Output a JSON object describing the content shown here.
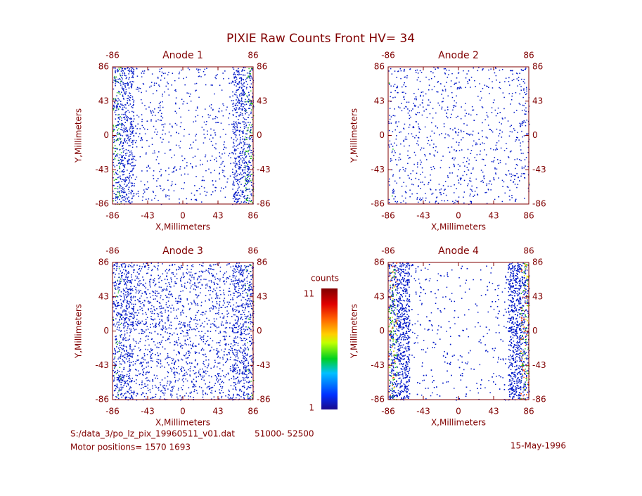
{
  "title": "PIXIE Raw Counts Front HV= 34",
  "chart_data": [
    {
      "type": "heatmap",
      "title": "Anode 1",
      "xlabel": "X,Millimeters",
      "ylabel": "Y,Millimeters",
      "xlim": [
        -86,
        86
      ],
      "ylim": [
        -86,
        86
      ],
      "xticks": [
        -86,
        -43,
        0,
        43,
        86
      ],
      "yticks": [
        -86,
        -43,
        0,
        43,
        86
      ],
      "x2ticks": [
        -86,
        86
      ]
    },
    {
      "type": "heatmap",
      "title": "Anode 2",
      "xlabel": "X,Millimeters",
      "ylabel": "Y,Millimeters",
      "xlim": [
        -86,
        86
      ],
      "ylim": [
        -86,
        86
      ],
      "xticks": [
        -86,
        -43,
        0,
        43,
        86
      ],
      "yticks": [
        -86,
        -43,
        0,
        43,
        86
      ],
      "x2ticks": [
        -86,
        86
      ]
    },
    {
      "type": "heatmap",
      "title": "Anode 3",
      "xlabel": "X,Millimeters",
      "ylabel": "Y,Millimeters",
      "xlim": [
        -86,
        86
      ],
      "ylim": [
        -86,
        86
      ],
      "xticks": [
        -86,
        -43,
        0,
        43,
        86
      ],
      "yticks": [
        -86,
        -43,
        0,
        43,
        86
      ],
      "x2ticks": [
        -86,
        86
      ]
    },
    {
      "type": "heatmap",
      "title": "Anode 4",
      "xlabel": "X,Millimeters",
      "ylabel": "Y,Millimeters",
      "xlim": [
        -86,
        86
      ],
      "ylim": [
        -86,
        86
      ],
      "xticks": [
        -86,
        -43,
        0,
        43,
        86
      ],
      "yticks": [
        -86,
        -43,
        0,
        43,
        86
      ],
      "x2ticks": [
        -86,
        86
      ]
    }
  ],
  "colorbar": {
    "label": "counts",
    "lim": [
      1,
      11
    ],
    "ticks": [
      1,
      11
    ]
  },
  "footer": {
    "file": "S:/data_3/po_lz_pix_19960511_v01.dat",
    "range": "51000- 52500",
    "motor": "Motor positions= 1570 1693",
    "date": "15-May-1996"
  }
}
